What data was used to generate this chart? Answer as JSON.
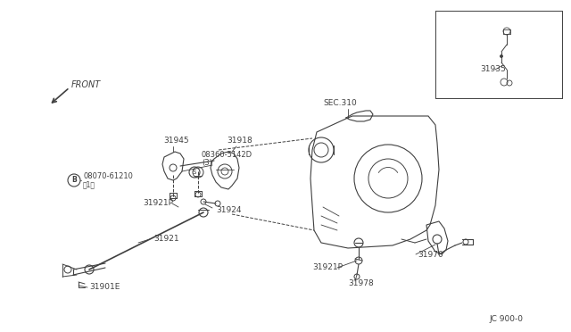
{
  "bg_color": "#ffffff",
  "line_color": "#404040",
  "diagram_code": "JC 900-0",
  "front_label": "FRONT",
  "sec310_label": "SEC.310",
  "label_31945": "31945",
  "label_31918": "31918",
  "label_08360": "©08360-5142D",
  "label_3": "(3)",
  "label_B08070": "¤08070-61210",
  "label_1": "〈1）",
  "label_31921P_L": "31921P",
  "label_31924": "31924",
  "label_31921": "31921",
  "label_31901E": "31901E",
  "label_31921P_R": "31921P",
  "label_31978": "31978",
  "label_31970": "31970",
  "label_31935": "31935"
}
